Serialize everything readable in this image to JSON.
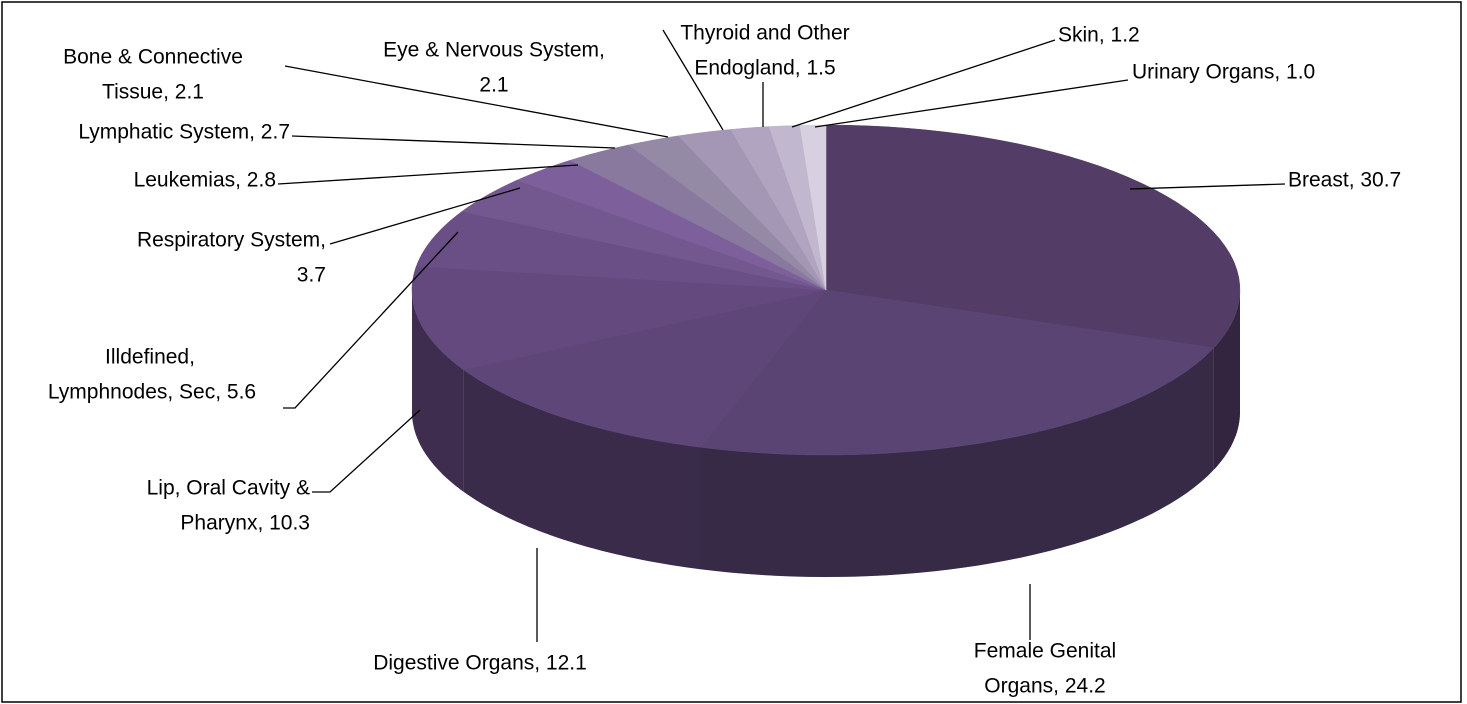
{
  "chart_data": {
    "type": "pie3d",
    "values": [
      30.7,
      24.2,
      12.1,
      10.3,
      5.6,
      3.7,
      2.8,
      2.7,
      2.1,
      2.1,
      1.5,
      1.2,
      1.0
    ],
    "value_labels": [
      [
        "Breast, 30.7"
      ],
      [
        "Female Genital",
        "Organs, 24.2"
      ],
      [
        "Digestive Organs, 12.1"
      ],
      [
        "Lip, Oral Cavity &",
        "Pharynx, 10.3"
      ],
      [
        "Illdefined,",
        "Lymphnodes, Sec, 5.6"
      ],
      [
        "Respiratory System,",
        "3.7"
      ],
      [
        "Leukemias, 2.8"
      ],
      [
        "Lymphatic System, 2.7"
      ],
      [
        "Bone & Connective",
        "Tissue, 2.1"
      ],
      [
        "Eye & Nervous System,",
        "2.1"
      ],
      [
        "Thyroid and Other",
        "Endogland, 1.5"
      ],
      [
        "Skin, 1.2"
      ],
      [
        "Urinary Organs, 1.0"
      ]
    ],
    "colors": [
      "#533d66",
      "#5a4473",
      "#5f4678",
      "#64497e",
      "#6a4f87",
      "#73578f",
      "#7d5f9c",
      "#8a799e",
      "#958aa6",
      "#a496b5",
      "#b0a4c1",
      "#c1b8d0",
      "#d6d0e0"
    ]
  }
}
